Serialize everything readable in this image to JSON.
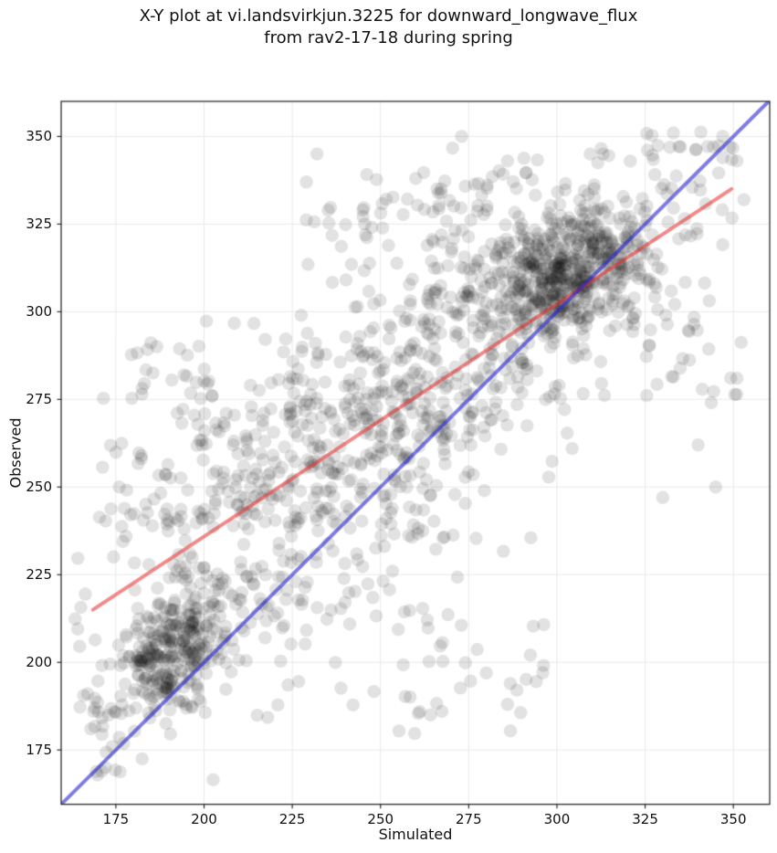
{
  "chart_data": {
    "type": "scatter",
    "title": "X-Y plot at vi.landsvirkjun.3225 for downward_longwave_flux\nfrom rav2-17-18 during spring",
    "xlabel": "Simulated",
    "ylabel": "Observed",
    "xlim": [
      159.5,
      360.3
    ],
    "ylim": [
      159.5,
      360.0
    ],
    "xticks": [
      175,
      200,
      225,
      250,
      275,
      300,
      325,
      350
    ],
    "yticks": [
      175,
      200,
      225,
      250,
      275,
      300,
      325,
      350
    ],
    "grid": true,
    "background": "#ffffff",
    "colors": {
      "grid": "#eaeaea",
      "frame": "#1a1a1a",
      "text": "#111111",
      "points": "rgba(15,15,15,0.12)",
      "identity_line": "rgba(38,38,210,0.60)",
      "regression_line": "rgba(232,41,41,0.55)"
    },
    "marker": {
      "shape": "circle",
      "radius_px": 7.2
    },
    "lines": {
      "identity": {
        "slope": 1,
        "intercept": 0
      },
      "regression": {
        "slope": 0.663,
        "intercept": 103.3,
        "x_start": 168.5,
        "x_end": 349.5
      }
    },
    "scatter_points": {
      "n_estimate": 1990,
      "seed": 1337,
      "components": [
        {
          "kind": "gauss",
          "n": 300,
          "cx": 192,
          "cy": 204,
          "sx": 8,
          "sy": 9.5,
          "rho": 0.5
        },
        {
          "kind": "gauss",
          "n": 520,
          "cx": 303,
          "cy": 310,
          "sx": 11.5,
          "sy": 9.5,
          "rho": 0.35
        },
        {
          "kind": "band",
          "n": 900,
          "x_mean": 250,
          "x_std": 40,
          "slope": 0.663,
          "intercept": 103.3,
          "noise": 23
        },
        {
          "kind": "uniband",
          "n": 80,
          "x0": 228,
          "x1": 352,
          "slope": 0.22,
          "intercept": 272,
          "noise": 6
        },
        {
          "kind": "unibox",
          "n": 55,
          "x0": 200,
          "x1": 298,
          "y0": 178,
          "y1": 216
        },
        {
          "kind": "unibox",
          "n": 60,
          "x0": 170,
          "x1": 206,
          "y0": 238,
          "y1": 292
        },
        {
          "kind": "unibox",
          "n": 50,
          "x0": 325,
          "x1": 353,
          "y0": 272,
          "y1": 348
        },
        {
          "kind": "unibox",
          "n": 25,
          "x0": 167,
          "x1": 187,
          "y0": 167,
          "y1": 200
        }
      ],
      "extra_points": [
        [
          273,
          350
        ],
        [
          266,
          335
        ],
        [
          260,
          338
        ],
        [
          286,
          343
        ],
        [
          232,
          345
        ],
        [
          229,
          337
        ],
        [
          333,
          351
        ],
        [
          335,
          347
        ],
        [
          349,
          347
        ],
        [
          351,
          343
        ],
        [
          347,
          350
        ],
        [
          172,
          170
        ],
        [
          169,
          187
        ],
        [
          167,
          191
        ],
        [
          174,
          176
        ],
        [
          345,
          250
        ],
        [
          351,
          281
        ],
        [
          296,
          197
        ],
        [
          286,
          188
        ],
        [
          340,
          262
        ],
        [
          330,
          247
        ]
      ]
    },
    "clip": {
      "x_min": 163,
      "x_max": 356,
      "y_min": 163,
      "y_max": 351.5
    }
  }
}
